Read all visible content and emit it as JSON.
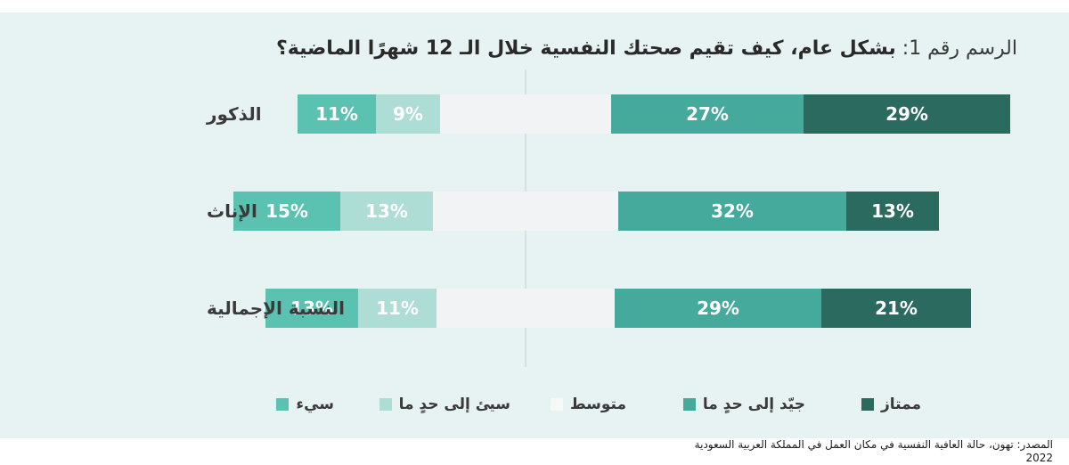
{
  "title": {
    "prefix": "الرسم رقم 1:",
    "main": "بشكل عام، كيف تقيم صحتك النفسية خلال الـ 12 شهرًا الماضية؟"
  },
  "source": {
    "line1": "المصدر: تهون، حالة العافية النفسية في مكان العمل في المملكة العربية السعودية",
    "line2": "2022"
  },
  "colors": {
    "panel": "#e7f3f2",
    "bad": "#5bc1b1",
    "somewhat_bad": "#aeddd6",
    "average": "#f1f3f4",
    "somewhat_good": "#45a99b",
    "excellent": "#2a6a5f"
  },
  "chart_data": {
    "type": "bar",
    "orientation": "horizontal",
    "stacked": "diverging",
    "title": "بشكل عام، كيف تقيم صحتك النفسية خلال الـ 12 شهرًا الماضية؟",
    "categories": [
      "الذكور",
      "الإناث",
      "النسبة الإجمالية"
    ],
    "series": [
      {
        "name": "سيء",
        "values": [
          11,
          15,
          13
        ]
      },
      {
        "name": "سيئ إلى حدٍ ما",
        "values": [
          9,
          13,
          11
        ]
      },
      {
        "name": "متوسط",
        "values": [
          24,
          26,
          25
        ]
      },
      {
        "name": "جيّد إلى حدٍ ما",
        "values": [
          27,
          32,
          29
        ]
      },
      {
        "name": "ممتاز",
        "values": [
          29,
          13,
          21
        ]
      }
    ],
    "data_labels": [
      [
        "11%",
        "9%",
        "",
        "27%",
        "29%"
      ],
      [
        "15%",
        "13%",
        "",
        "32%",
        "13%"
      ],
      [
        "13%",
        "11%",
        "",
        "29%",
        "21%"
      ]
    ],
    "legend_position": "bottom",
    "grid": false
  }
}
